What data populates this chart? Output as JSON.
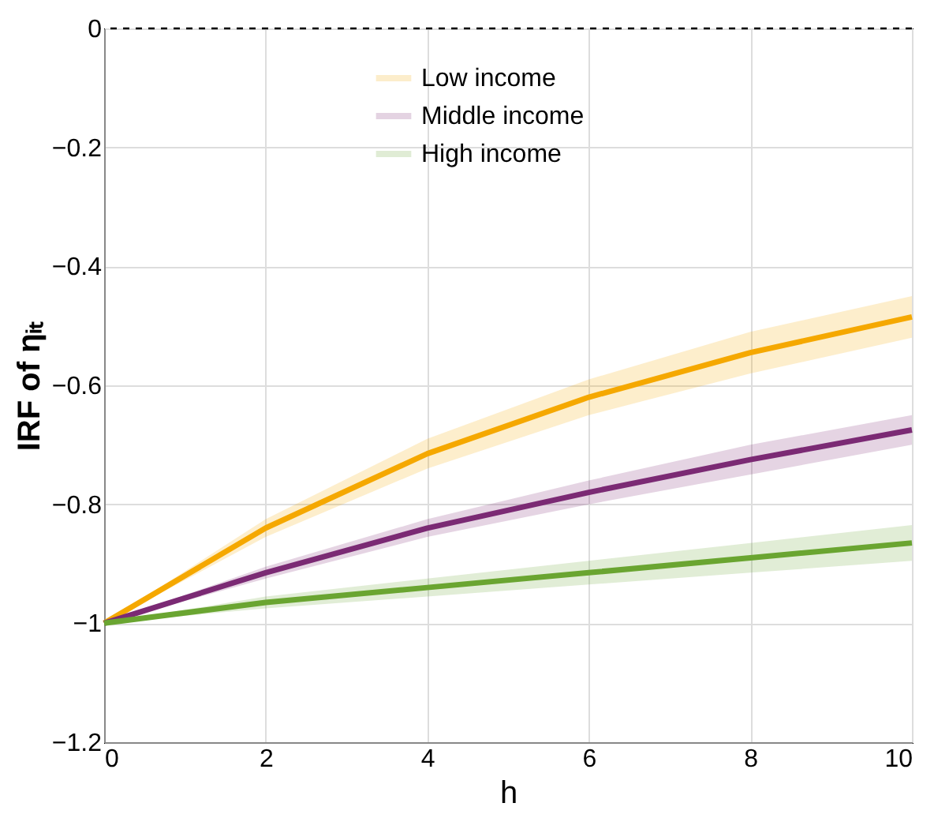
{
  "chart_data": {
    "type": "line",
    "xlabel": "h",
    "ylabel": "IRF of ηᵢₜ",
    "x": [
      0,
      2,
      4,
      6,
      8,
      10
    ],
    "series": [
      {
        "name": "Low income",
        "color": "#f5a800",
        "values": [
          -1,
          -0.84,
          -0.715,
          -0.62,
          -0.545,
          -0.485
        ],
        "lower": [
          -1,
          -0.855,
          -0.74,
          -0.65,
          -0.58,
          -0.52
        ],
        "upper": [
          -1,
          -0.825,
          -0.69,
          -0.59,
          -0.51,
          -0.45
        ]
      },
      {
        "name": "Middle income",
        "color": "#7b2a74",
        "values": [
          -1,
          -0.915,
          -0.84,
          -0.78,
          -0.725,
          -0.675
        ],
        "lower": [
          -1,
          -0.925,
          -0.855,
          -0.8,
          -0.75,
          -0.7
        ],
        "upper": [
          -1,
          -0.905,
          -0.825,
          -0.76,
          -0.7,
          -0.65
        ]
      },
      {
        "name": "High income",
        "color": "#6aa531",
        "values": [
          -1,
          -0.965,
          -0.94,
          -0.915,
          -0.89,
          -0.865
        ],
        "lower": [
          -1,
          -0.975,
          -0.955,
          -0.935,
          -0.915,
          -0.895
        ],
        "upper": [
          -1,
          -0.955,
          -0.925,
          -0.895,
          -0.865,
          -0.835
        ]
      }
    ],
    "xlim": [
      0,
      10
    ],
    "xticks": [
      0,
      2,
      4,
      6,
      8,
      10
    ],
    "ylim": [
      -1.2,
      0
    ],
    "yticks": [
      -1.2,
      -1,
      -0.8,
      -0.6,
      -0.4,
      -0.2,
      0
    ],
    "ref_lines": [
      {
        "axis": "y",
        "value": 0,
        "color": "#000000",
        "line_style": "dashed"
      }
    ],
    "grid": true,
    "legend": "top",
    "line_style": "solid",
    "marker": "none"
  }
}
